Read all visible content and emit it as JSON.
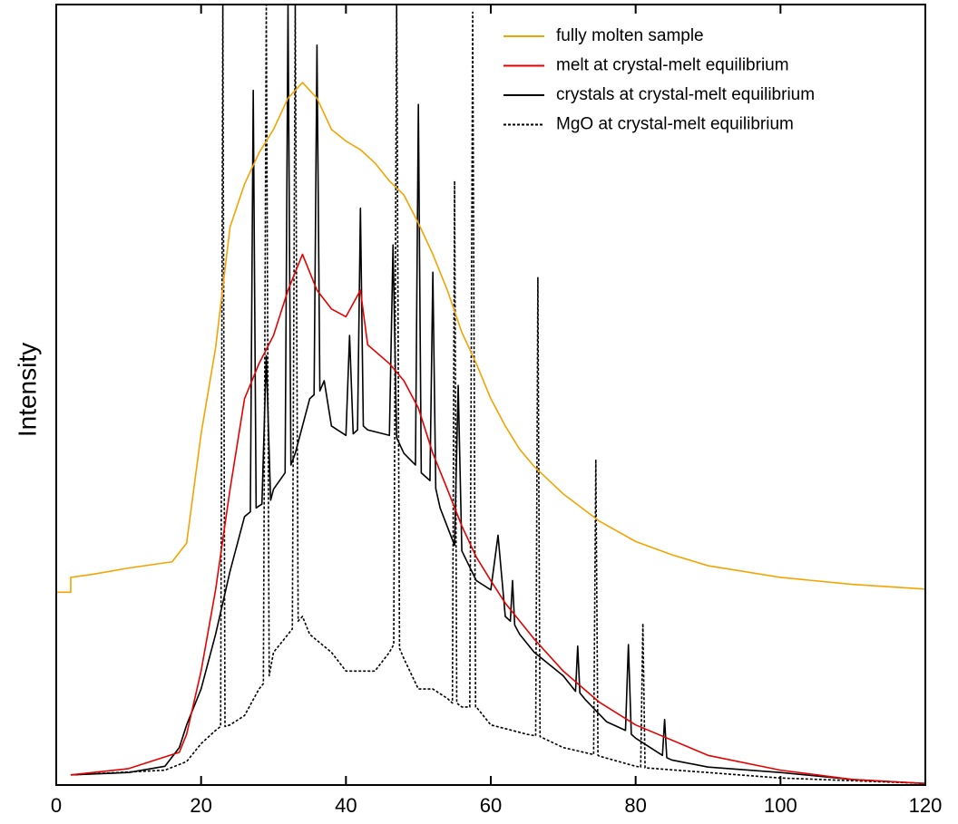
{
  "chart_data": {
    "type": "line",
    "ylabel": "Intensity",
    "xlim": [
      0,
      120
    ],
    "xticks": [
      0,
      20,
      40,
      60,
      80,
      100,
      120
    ],
    "ylim": [
      0,
      100
    ],
    "legend": "upper right",
    "series": [
      {
        "name": "fully molten sample",
        "color": "#f5a300",
        "linestyle": "solid",
        "x": [
          0,
          2,
          2,
          5,
          10,
          16,
          18,
          20,
          22,
          24,
          26,
          28,
          30,
          32,
          34,
          36,
          38,
          40,
          42,
          44,
          46,
          48,
          50,
          52,
          54,
          56,
          58,
          60,
          62,
          64,
          66,
          70,
          75,
          80,
          85,
          90,
          100,
          110,
          120
        ],
        "values": [
          24.7,
          24.7,
          26.6,
          27,
          27.8,
          28.6,
          31,
          45,
          56,
          71.5,
          77,
          81,
          84,
          88,
          90,
          88,
          84,
          82.5,
          81.4,
          79.7,
          77.4,
          75.6,
          72,
          68,
          63.4,
          58,
          54,
          49.5,
          46,
          43,
          40.8,
          37.3,
          33.8,
          31.2,
          29.5,
          28.1,
          26.6,
          25.7,
          25.1
        ]
      },
      {
        "name": "melt at crystal-melt equilibrium",
        "color": "#e60000",
        "linestyle": "solid",
        "x": [
          2,
          10,
          15,
          17,
          18,
          20,
          22,
          24,
          26,
          28,
          30,
          32,
          34,
          36,
          38,
          40,
          42,
          43,
          46,
          48,
          50,
          52,
          54,
          56,
          58,
          60,
          62,
          66,
          70,
          75,
          80,
          90,
          100,
          110,
          120
        ],
        "values": [
          1.3,
          2.1,
          3.6,
          4.2,
          6.5,
          14.6,
          25,
          37.9,
          49.5,
          54,
          57.6,
          63.4,
          68,
          63.4,
          61,
          60,
          63.4,
          56.4,
          54,
          51.8,
          48.3,
          42.5,
          37.9,
          33.2,
          29.2,
          26.2,
          23.3,
          18.7,
          14.6,
          10.6,
          7.7,
          3.8,
          1.9,
          0.7,
          0.2
        ]
      },
      {
        "name": "crystals at crystal-melt equilibrium",
        "color": "#000000",
        "linestyle": "solid",
        "x": [
          2,
          10,
          15,
          17,
          18,
          20,
          22,
          24,
          26,
          26.8,
          27.2,
          27.6,
          28.4,
          29,
          29.6,
          30,
          31.6,
          32,
          32.4,
          33,
          34,
          35,
          35.6,
          36,
          36.4,
          37,
          38,
          40,
          40.5,
          41,
          41.6,
          42,
          42.4,
          43,
          46,
          46.5,
          47,
          48,
          49.6,
          50,
          50.4,
          51,
          51.6,
          52,
          52.4,
          53,
          55,
          55.5,
          56,
          58,
          60,
          61,
          62,
          62.7,
          63,
          63.3,
          64,
          66,
          70,
          71.7,
          72,
          72.3,
          73,
          76,
          78.6,
          79,
          79.4,
          80,
          83.7,
          84,
          84.3,
          85,
          90,
          100,
          110,
          120
        ],
        "values": [
          1.3,
          1.6,
          2.4,
          4.8,
          7.7,
          12.3,
          19.3,
          27.4,
          34.4,
          35,
          89,
          35.5,
          36,
          55,
          36.5,
          37.9,
          40,
          100,
          41,
          42.5,
          46,
          49.5,
          50,
          94.8,
          50.5,
          51.8,
          46,
          44.8,
          57.6,
          45,
          45.5,
          73.9,
          46,
          45.5,
          44.8,
          69.2,
          44.5,
          42.5,
          41,
          87.2,
          40,
          39.5,
          39,
          65.7,
          38,
          35.5,
          30.7,
          51.2,
          30,
          26.2,
          25,
          32,
          21.6,
          21,
          26.2,
          20.5,
          19.3,
          17,
          14,
          12,
          17.8,
          11.8,
          11,
          8.1,
          7,
          18,
          6.5,
          6,
          3.8,
          8.4,
          3.5,
          3.2,
          2.3,
          1.6,
          0.7,
          0.2
        ]
      },
      {
        "name": "MgO at crystal-melt equilibrium",
        "color": "#000000",
        "linestyle": "dotted",
        "x": [
          2,
          15,
          18,
          20,
          22,
          22.7,
          23,
          23.3,
          24,
          26,
          28,
          28.6,
          29,
          29.4,
          30,
          32,
          32.6,
          33,
          33.4,
          34,
          35,
          38,
          40,
          44,
          46,
          46.6,
          47,
          47.4,
          48,
          50,
          52,
          54,
          54.7,
          55,
          55.3,
          56,
          57.1,
          57.5,
          57.9,
          58,
          60,
          65,
          66.2,
          66.5,
          66.8,
          70,
          74.2,
          74.5,
          74.8,
          75,
          80,
          80.7,
          81,
          81.3,
          90,
          100,
          120
        ],
        "values": [
          1.3,
          1.9,
          3,
          5.3,
          7,
          7.5,
          100,
          7.5,
          7.7,
          8.9,
          12.3,
          13,
          100,
          14,
          17,
          19.3,
          20,
          100,
          21,
          21.6,
          19.3,
          17,
          14.6,
          14.6,
          17,
          18,
          100,
          17.5,
          16.2,
          12.3,
          12.3,
          11.1,
          10.5,
          77.4,
          10.5,
          10,
          10,
          99,
          10,
          10,
          7.7,
          6.5,
          6.3,
          65,
          6.2,
          4.8,
          3.9,
          41.7,
          3.8,
          3.7,
          2.4,
          2.3,
          20.7,
          2.2,
          1.6,
          0.9,
          0.2
        ]
      }
    ]
  }
}
